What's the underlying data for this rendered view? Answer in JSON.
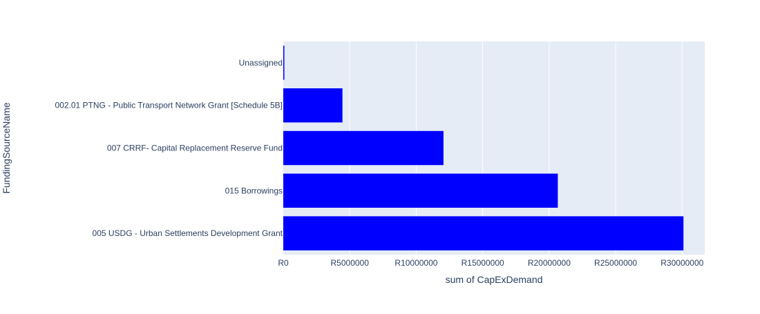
{
  "chart_data": {
    "type": "bar",
    "orientation": "horizontal",
    "title": "",
    "xlabel": "sum of CapExDemand",
    "ylabel": "FundingSourceName",
    "categories": [
      "Unassigned",
      "002.01 PTNG - Public Transport Network Grant [Schedule 5B]",
      "007 CRRF- Capital Replacement Reserve Fund",
      "015 Borrowings",
      "005 USDG - Urban Settlements Development Grant"
    ],
    "values": [
      80000,
      4450000,
      12050000,
      20650000,
      30100000
    ],
    "xlim": [
      0,
      31700000
    ],
    "x_ticks": [
      0,
      5000000,
      10000000,
      15000000,
      20000000,
      25000000,
      30000000
    ],
    "x_tick_labels": [
      "R0",
      "R5000000",
      "R10000000",
      "R15000000",
      "R20000000",
      "R25000000",
      "R30000000"
    ],
    "grid": true,
    "bar_color": "#0000ff",
    "plot_background": "#e5ecf6",
    "legend": "none"
  }
}
